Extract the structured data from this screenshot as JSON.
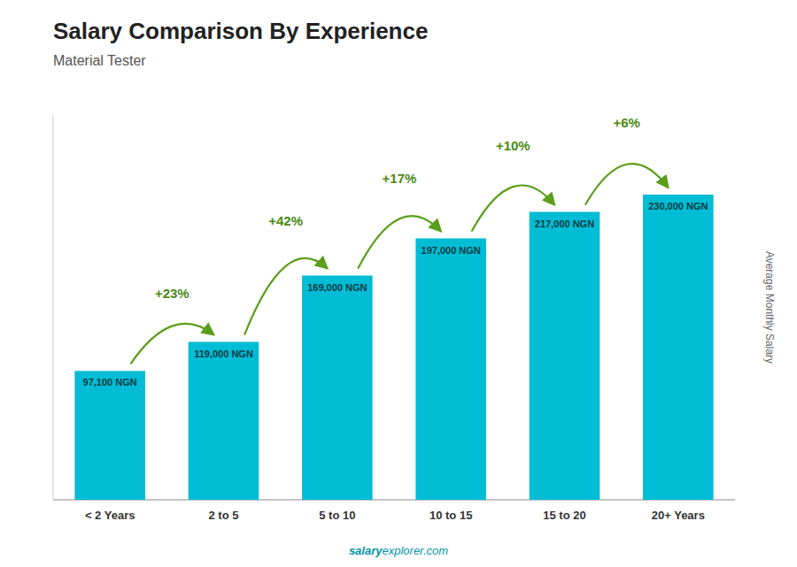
{
  "chart_data": {
    "type": "bar",
    "title": "Salary Comparison By Experience",
    "subtitle": "Material Tester",
    "ylabel": "Average Monthly Salary",
    "categories": [
      "< 2 Years",
      "2 to 5",
      "5 to 10",
      "10 to 15",
      "15 to 20",
      "20+ Years"
    ],
    "values": [
      97100,
      119000,
      169000,
      197000,
      217000,
      230000
    ],
    "value_labels": [
      "97,100 NGN",
      "119,000 NGN",
      "169,000 NGN",
      "197,000 NGN",
      "217,000 NGN",
      "230,000 NGN"
    ],
    "data_labels": true,
    "annotations": [
      "+23%",
      "+42%",
      "+17%",
      "+10%",
      "+6%"
    ],
    "watermark": [
      "salary",
      "explorer.com"
    ],
    "color": "#00bcd4",
    "ylim": [
      0,
      290000
    ],
    "tick_labels": "x",
    "grid": false
  }
}
